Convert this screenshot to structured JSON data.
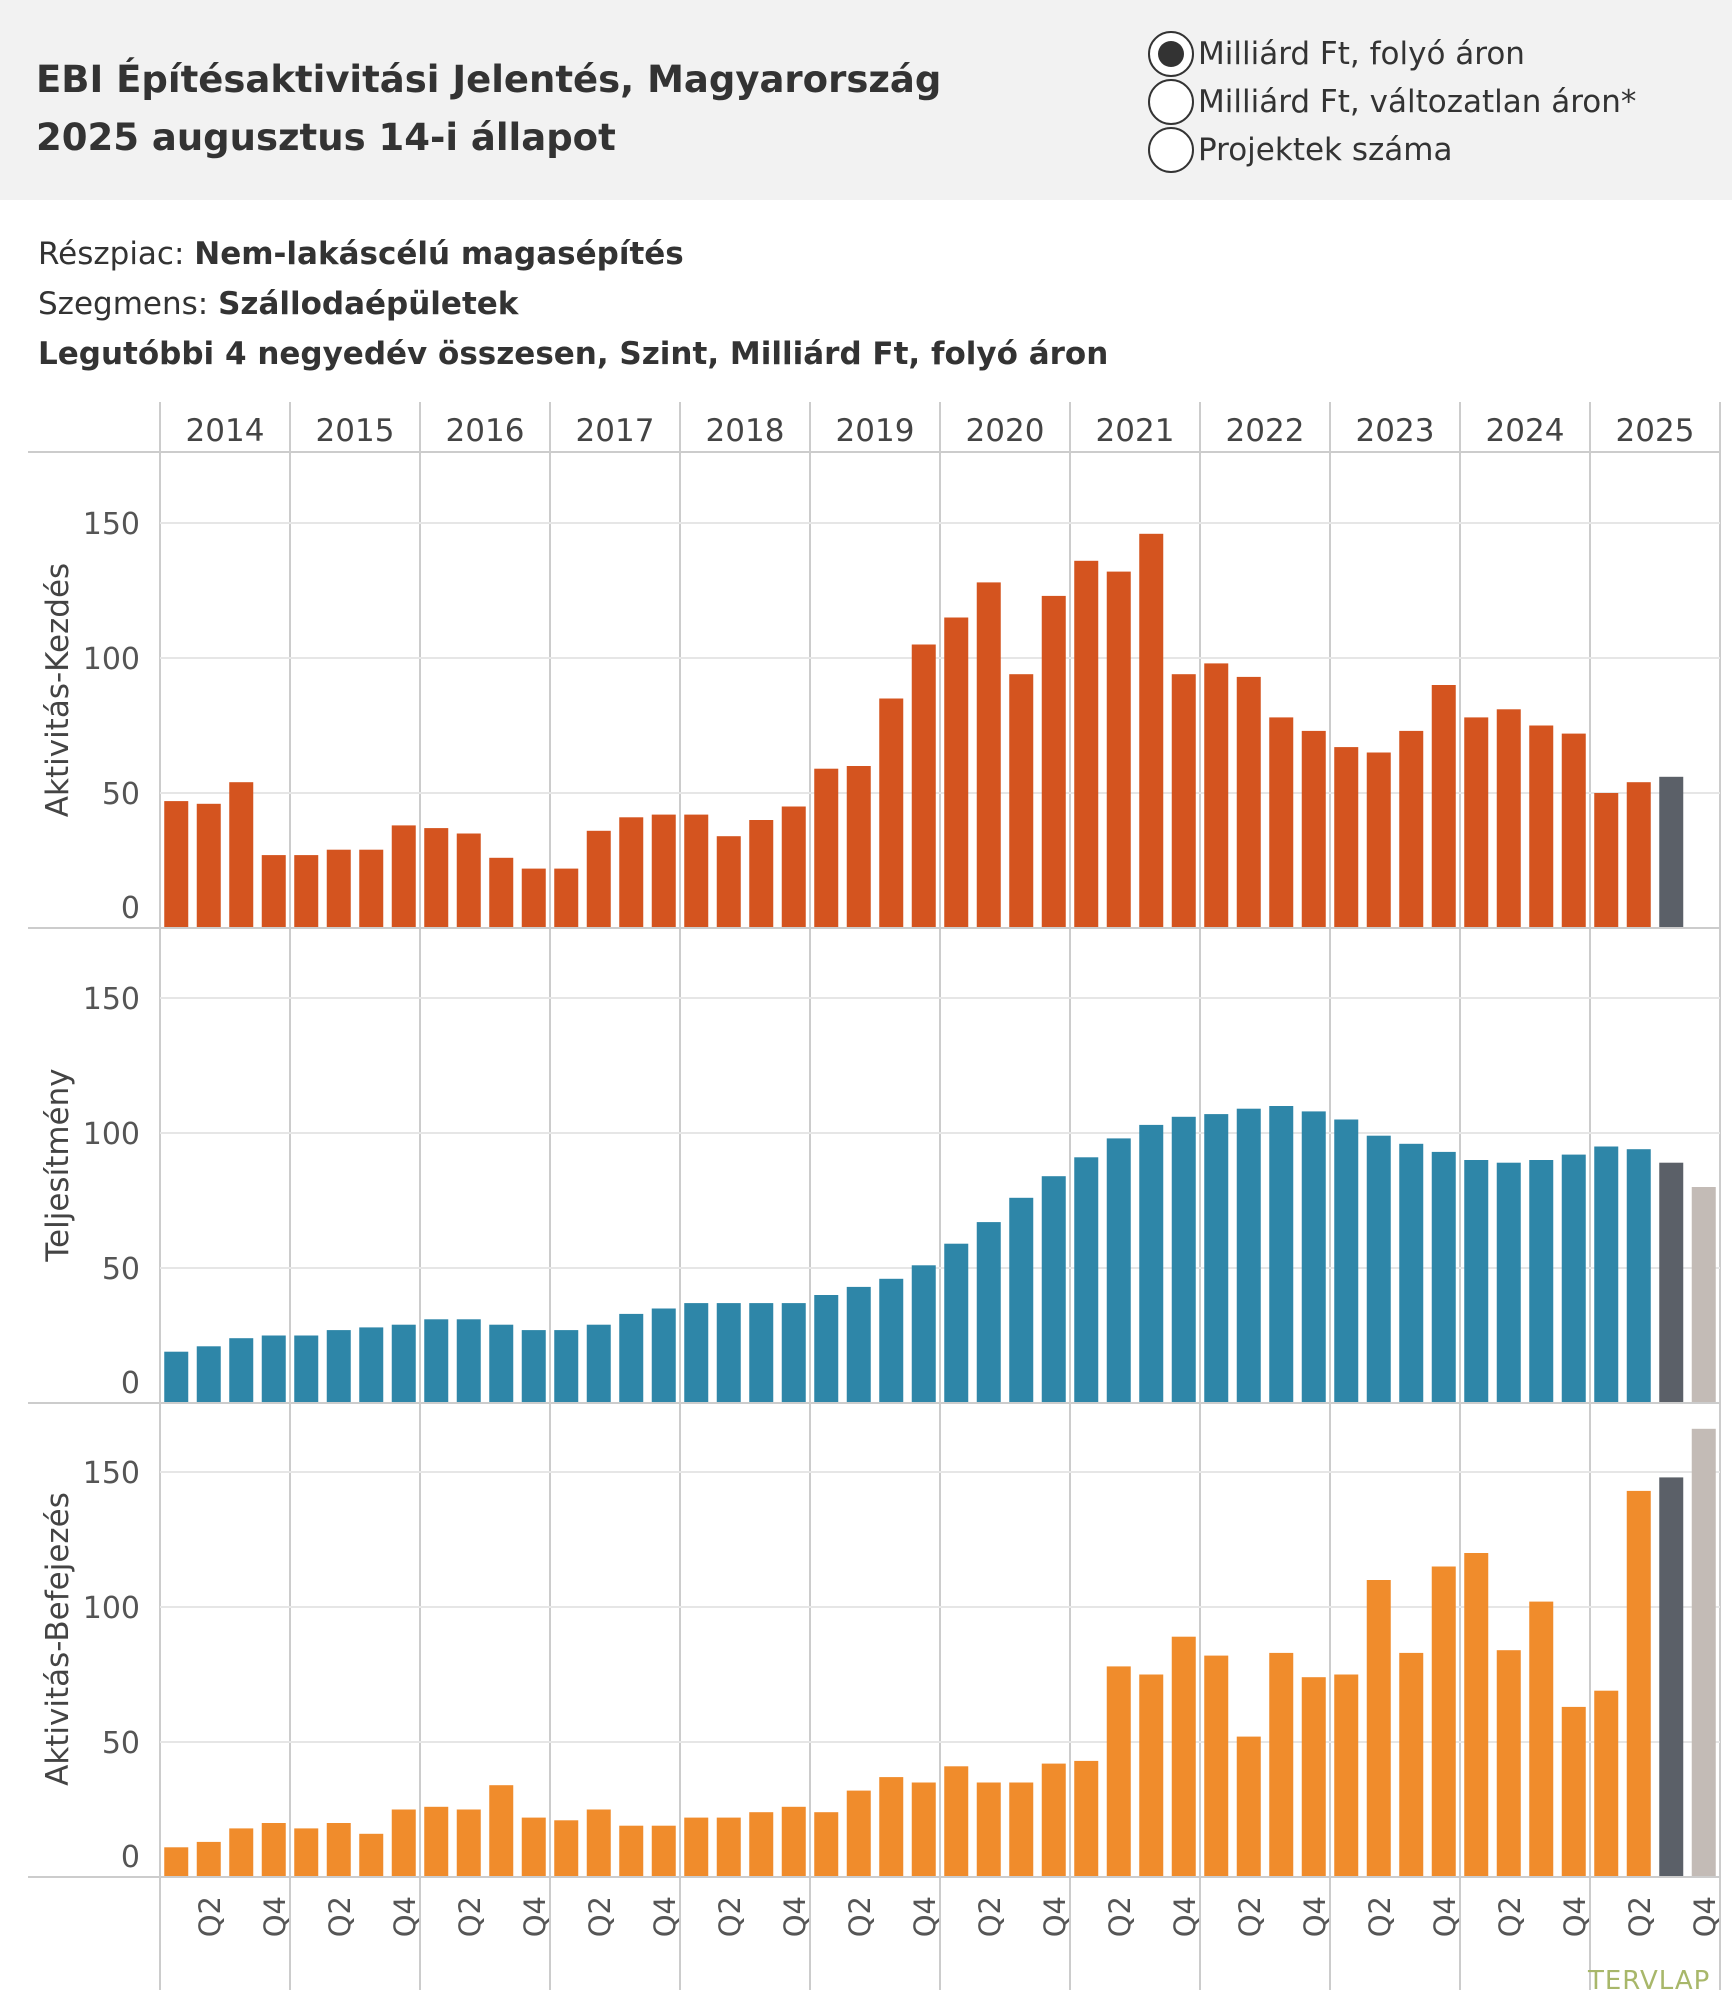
{
  "header": {
    "title_line1": "EBI Építésaktivitási Jelentés, Magyarország",
    "title_line2": "2025 augusztus 14-i állapot"
  },
  "radio_options": [
    {
      "label": "Milliárd Ft, folyó áron",
      "selected": true
    },
    {
      "label": "Milliárd Ft, változatlan áron*",
      "selected": false
    },
    {
      "label": "Projektek száma",
      "selected": false
    }
  ],
  "info": {
    "market_label": "Részpiac:",
    "market_value": "Nem-lakáscélú magasépítés",
    "segment_label": "Szegmens:",
    "segment_value": "Szállodaépületek",
    "measure": "Legutóbbi 4 negyedév összesen, Szint, Milliárd Ft, folyó áron"
  },
  "colors": {
    "kezdes": "#d4541f",
    "teljesitmeny": "#2e86a8",
    "befejezes": "#f08c2c",
    "current": "#5b6068",
    "forecast": "#c3bbb6",
    "grid": "#e6e6e6",
    "divider": "#cccccc"
  },
  "logo": "TERVLAP",
  "chart_data": {
    "type": "bar",
    "years": [
      "2014",
      "2015",
      "2016",
      "2017",
      "2018",
      "2019",
      "2020",
      "2021",
      "2022",
      "2023",
      "2024",
      "2025"
    ],
    "quarter_tick_labels": [
      "Q2",
      "Q4"
    ],
    "x": [
      "2014Q1",
      "2014Q2",
      "2014Q3",
      "2014Q4",
      "2015Q1",
      "2015Q2",
      "2015Q3",
      "2015Q4",
      "2016Q1",
      "2016Q2",
      "2016Q3",
      "2016Q4",
      "2017Q1",
      "2017Q2",
      "2017Q3",
      "2017Q4",
      "2018Q1",
      "2018Q2",
      "2018Q3",
      "2018Q4",
      "2019Q1",
      "2019Q2",
      "2019Q3",
      "2019Q4",
      "2020Q1",
      "2020Q2",
      "2020Q3",
      "2020Q4",
      "2021Q1",
      "2021Q2",
      "2021Q3",
      "2021Q4",
      "2022Q1",
      "2022Q2",
      "2022Q3",
      "2022Q4",
      "2023Q1",
      "2023Q2",
      "2023Q3",
      "2023Q4",
      "2024Q1",
      "2024Q2",
      "2024Q3",
      "2024Q4",
      "2025Q1",
      "2025Q2",
      "2025Q3",
      "2025Q4"
    ],
    "ylim": [
      0,
      175
    ],
    "yticks": [
      0,
      50,
      100,
      150
    ],
    "series": [
      {
        "name": "Aktivitás-Kezdés",
        "color_key": "kezdes",
        "values": [
          47,
          46,
          54,
          27,
          27,
          29,
          29,
          38,
          37,
          35,
          26,
          22,
          22,
          36,
          41,
          42,
          42,
          34,
          40,
          45,
          59,
          60,
          85,
          105,
          115,
          128,
          94,
          123,
          136,
          132,
          146,
          94,
          98,
          93,
          78,
          73,
          67,
          65,
          73,
          90,
          78,
          81,
          75,
          72,
          50,
          54,
          56,
          null
        ],
        "current_index": 46,
        "forecast_index": null
      },
      {
        "name": "Teljesítmény",
        "color_key": "teljesitmeny",
        "values": [
          19,
          21,
          24,
          25,
          25,
          27,
          28,
          29,
          31,
          31,
          29,
          27,
          27,
          29,
          33,
          35,
          37,
          37,
          37,
          37,
          40,
          43,
          46,
          51,
          59,
          67,
          76,
          84,
          91,
          98,
          103,
          106,
          107,
          109,
          110,
          108,
          105,
          99,
          96,
          93,
          90,
          89,
          90,
          92,
          95,
          94,
          89,
          80
        ],
        "current_index": 46,
        "forecast_index": 47
      },
      {
        "name": "Aktivitás-Befejezés",
        "color_key": "befejezes",
        "values": [
          11,
          13,
          18,
          20,
          18,
          20,
          16,
          25,
          26,
          25,
          34,
          22,
          21,
          25,
          19,
          19,
          22,
          22,
          24,
          26,
          24,
          32,
          37,
          35,
          41,
          35,
          35,
          42,
          43,
          78,
          75,
          89,
          82,
          52,
          83,
          74,
          75,
          110,
          83,
          115,
          120,
          84,
          102,
          63,
          69,
          143,
          148,
          166
        ],
        "current_index": 46,
        "forecast_index": 47
      }
    ]
  }
}
